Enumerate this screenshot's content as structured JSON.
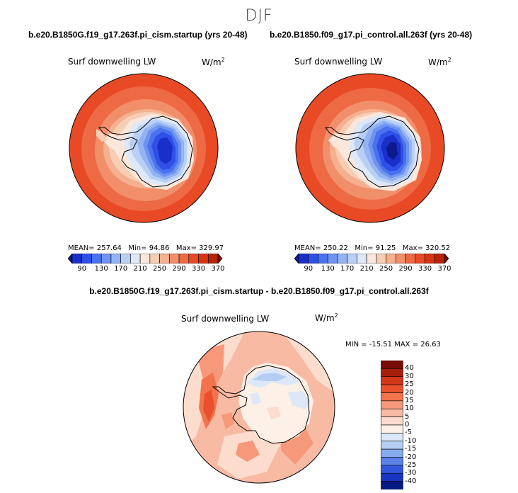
{
  "season": "DJF",
  "panels": [
    {
      "case": "b.e20.B1850G.f19_g17.263f.pi_cism.startup (yrs 20-48)",
      "variable": "Surf downwelling LW",
      "units": "W/m",
      "units_exp": "2",
      "mean_label": "MEAN=",
      "mean": "257.64",
      "min_label": "Min=",
      "min": "94.86",
      "max_label": "Max=",
      "max": "329.97"
    },
    {
      "case": "b.e20.B1850.f09_g17.pi_control.all.263f (yrs 20-48)",
      "variable": "Surf downwelling LW",
      "units": "W/m",
      "units_exp": "2",
      "mean_label": "MEAN=",
      "mean": "250.22",
      "min_label": "Min=",
      "min": "91.25",
      "max_label": "Max=",
      "max": "320.52"
    }
  ],
  "field_colorbar": {
    "ticks": [
      "90",
      "130",
      "170",
      "210",
      "250",
      "290",
      "330",
      "370"
    ],
    "colors": [
      "#0b1a8c",
      "#1a2fc9",
      "#2f50e6",
      "#4a72ee",
      "#6e93f0",
      "#93b3f3",
      "#b9d0f6",
      "#dde8f8",
      "#fbe7dc",
      "#f7cdb4",
      "#f5b08f",
      "#f28f6b",
      "#ee6a45",
      "#e84a25",
      "#d93414",
      "#b62409",
      "#7d0a04"
    ]
  },
  "difference": {
    "title": "b.e20.B1850G.f19_g17.263f.pi_cism.startup - b.e20.B1850.f09_g17.pi_control.all.263f",
    "variable": "Surf downwelling LW",
    "units": "W/m",
    "units_exp": "2",
    "minmax": "MIN = -15.51  MAX =  26.63",
    "ticks": [
      "40",
      "30",
      "25",
      "20",
      "15",
      "10",
      "5",
      "0",
      "-5",
      "-10",
      "-15",
      "-20",
      "-25",
      "-30",
      "-40"
    ],
    "colors": [
      "#7a0a05",
      "#a81e0c",
      "#d2371b",
      "#e8512b",
      "#f2734c",
      "#f6987a",
      "#f8baa3",
      "#fbdccd",
      "#fdf0e6",
      "#dce7f7",
      "#b5cdf3",
      "#86aaee",
      "#5b83e8",
      "#3257dd",
      "#1535c2",
      "#051a82"
    ]
  }
}
